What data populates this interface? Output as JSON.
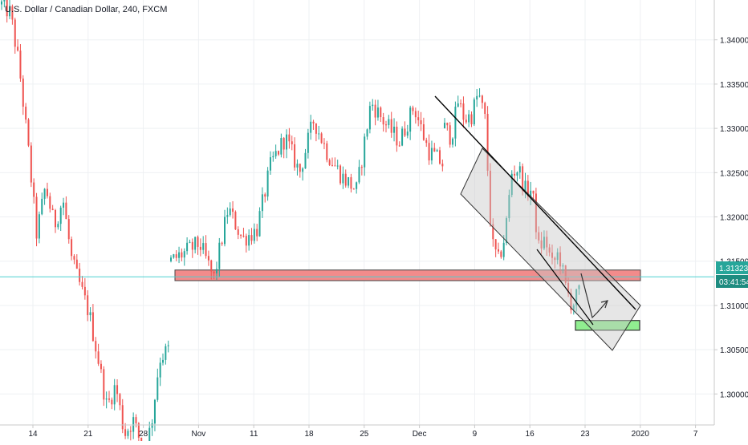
{
  "chart_data": {
    "type": "candlestick",
    "title": "U.S. Dollar / Canadian Dollar, 240, FXCM",
    "ylim": [
      1.2965,
      1.3445
    ],
    "y_ticks": [
      1.3,
      1.305,
      1.31,
      1.315,
      1.32,
      1.325,
      1.33,
      1.335,
      1.34
    ],
    "y_tick_labels": [
      "1.30000",
      "1.30500",
      "1.31000",
      "1.31500",
      "1.32000",
      "1.32500",
      "1.33000",
      "1.33500",
      "1.34000"
    ],
    "x_ticks": [
      "14",
      "21",
      "28",
      "Nov",
      "11",
      "18",
      "25",
      "Dec",
      "9",
      "16",
      "23",
      "2020",
      "7"
    ],
    "grid": true,
    "current_price": 1.31323,
    "current_price_label": "1.31323",
    "countdown_label": "03:41:54",
    "path_points": [
      [
        1.344,
        1.343,
        1.337,
        1.328,
        1.318,
        1.3235,
        1.319,
        1.322,
        1.315,
        1.312,
        1.309,
        1.304,
        1.2985,
        1.301,
        1.2955,
        1.297,
        1.294,
        1.296,
        1.304,
        1.305
      ],
      [
        1.315,
        1.316,
        1.317,
        1.313,
        1.321,
        1.3175,
        1.3185,
        1.326,
        1.329,
        1.325,
        1.331,
        1.327,
        1.3245,
        1.323,
        1.333,
        1.3305,
        1.3285,
        1.3325,
        1.3275,
        1.326
      ],
      [
        1.33,
        1.329,
        1.333,
        1.331,
        1.3315,
        1.334,
        1.331,
        1.317,
        1.315,
        1.318,
        1.325,
        1.3255,
        1.323,
        1.323,
        1.3165,
        1.3175,
        1.3145,
        1.316,
        1.312,
        1.31,
        1.3115
      ]
    ],
    "annotations": {
      "resistance_zone": {
        "y_low": 1.3128,
        "y_high": 1.314,
        "color": "#f28b8b"
      },
      "support_zone": {
        "y_low": 1.3072,
        "y_high": 1.3083,
        "color": "#90ee90"
      },
      "channel_color": "#c8c8c8"
    },
    "colors": {
      "up": "#26a69a",
      "down": "#ef5350",
      "price_line": "#4dd0d0",
      "price_label_bg": "#26a69a",
      "countdown_bg": "#1e8c80"
    }
  }
}
